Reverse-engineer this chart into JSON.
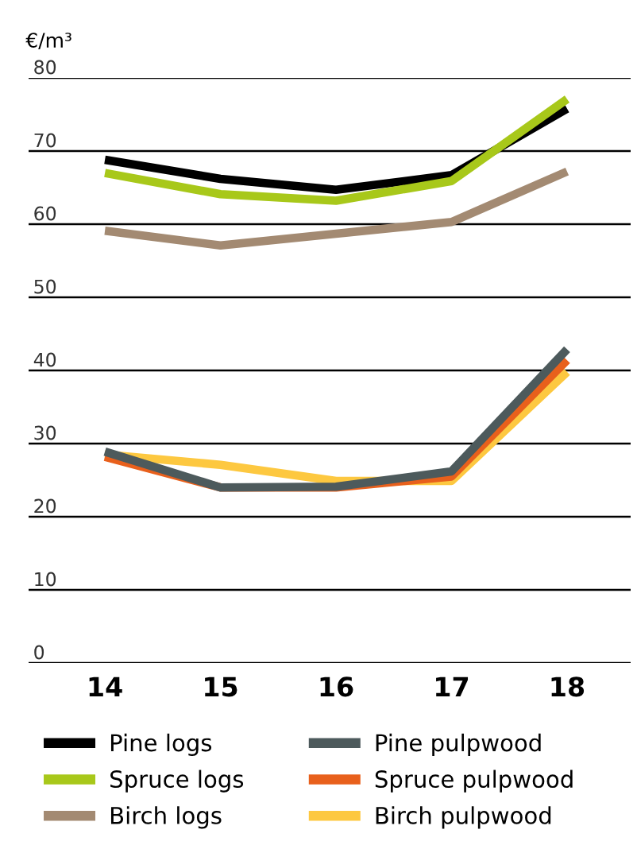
{
  "chart_data": {
    "type": "line",
    "ylabel": "€/m³",
    "categories": [
      "14",
      "15",
      "16",
      "17",
      "18"
    ],
    "series": [
      {
        "name": "Pine logs",
        "color": "#000000",
        "values": [
          68.8,
          66.2,
          64.7,
          66.7,
          75.8
        ]
      },
      {
        "name": "Spruce logs",
        "color": "#a8c81a",
        "values": [
          67.0,
          64.1,
          63.2,
          65.9,
          77.1
        ]
      },
      {
        "name": "Birch logs",
        "color": "#a38a72",
        "values": [
          59.1,
          57.1,
          58.7,
          60.3,
          67.2
        ]
      },
      {
        "name": "Birch pulpwood",
        "color": "#fdc840",
        "values": [
          28.5,
          27.1,
          24.9,
          24.9,
          39.8
        ]
      },
      {
        "name": "Spruce pulpwood",
        "color": "#e8601c",
        "values": [
          28.2,
          24.0,
          24.0,
          25.5,
          41.4
        ]
      },
      {
        "name": "Pine pulpwood",
        "color": "#4d5a5c",
        "values": [
          28.9,
          24.0,
          24.1,
          26.2,
          42.9
        ]
      }
    ],
    "ylim": [
      0,
      80
    ],
    "yticks": [
      0,
      10,
      20,
      30,
      40,
      50,
      60,
      70,
      80
    ],
    "grid": "y",
    "legend": "bottom",
    "marker": "none",
    "line_style": "solid"
  }
}
